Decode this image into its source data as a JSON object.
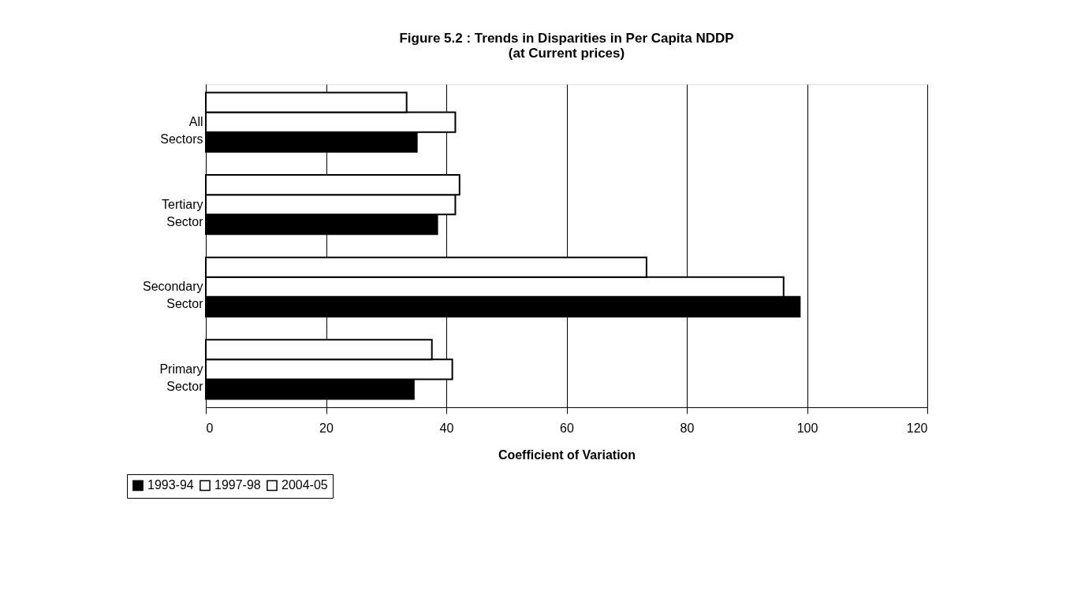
{
  "chart_data": {
    "type": "bar",
    "orientation": "horizontal",
    "title": [
      "Figure 5.2 : Trends in Disparities in Per Capita NDDP",
      "(at Current prices)"
    ],
    "xlabel": "Coefficient of Variation",
    "categories": [
      "All Sectors",
      "Tertiary Sector",
      "Secondary Sector",
      "Primary Sector"
    ],
    "series": [
      {
        "name": "1993-94",
        "color": "#000000",
        "values": [
          35.1,
          38.5,
          98.8,
          34.6
        ]
      },
      {
        "name": "1997-98",
        "color": "#ffffff",
        "values": [
          41.5,
          41.5,
          96.1,
          41.0
        ]
      },
      {
        "name": "2004-05",
        "color": "#ffffff",
        "values": [
          33.4,
          42.2,
          73.3,
          37.6
        ]
      }
    ],
    "xlim": [
      0,
      120
    ],
    "xticks": [
      0,
      20,
      40,
      60,
      80,
      100,
      120
    ],
    "grid": "x",
    "legend": "bottom left"
  }
}
